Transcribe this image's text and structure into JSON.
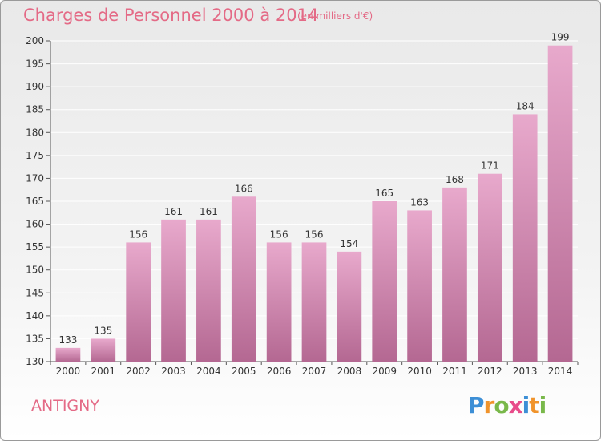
{
  "header": {
    "title": "Charges de Personnel 2000 à 2014",
    "subtitle": "(en milliers d'€)"
  },
  "footer": {
    "commune": "ANTIGNY",
    "brand": [
      "P",
      "r",
      "o",
      "x",
      "i",
      "t",
      "i"
    ],
    "brand_colors": [
      "#3d8fd6",
      "#f0932b",
      "#79b84a",
      "#e84c8a",
      "#3d8fd6",
      "#f0932b",
      "#79b84a"
    ]
  },
  "colors": {
    "bar_top": "#e8a9cc",
    "bar_bottom": "#b46892",
    "axis": "#555555",
    "grid": "#ffffff",
    "text": "#333333"
  },
  "chart_data": {
    "type": "bar",
    "categories": [
      "2000",
      "2001",
      "2002",
      "2003",
      "2004",
      "2005",
      "2006",
      "2007",
      "2008",
      "2009",
      "2010",
      "2011",
      "2012",
      "2013",
      "2014"
    ],
    "values": [
      133,
      135,
      156,
      161,
      161,
      166,
      156,
      156,
      154,
      165,
      163,
      168,
      171,
      184,
      199
    ],
    "ylim": [
      130,
      200
    ],
    "yticks": [
      130,
      135,
      140,
      145,
      150,
      155,
      160,
      165,
      170,
      175,
      180,
      185,
      190,
      195,
      200
    ],
    "grid": true,
    "data_labels": true
  }
}
